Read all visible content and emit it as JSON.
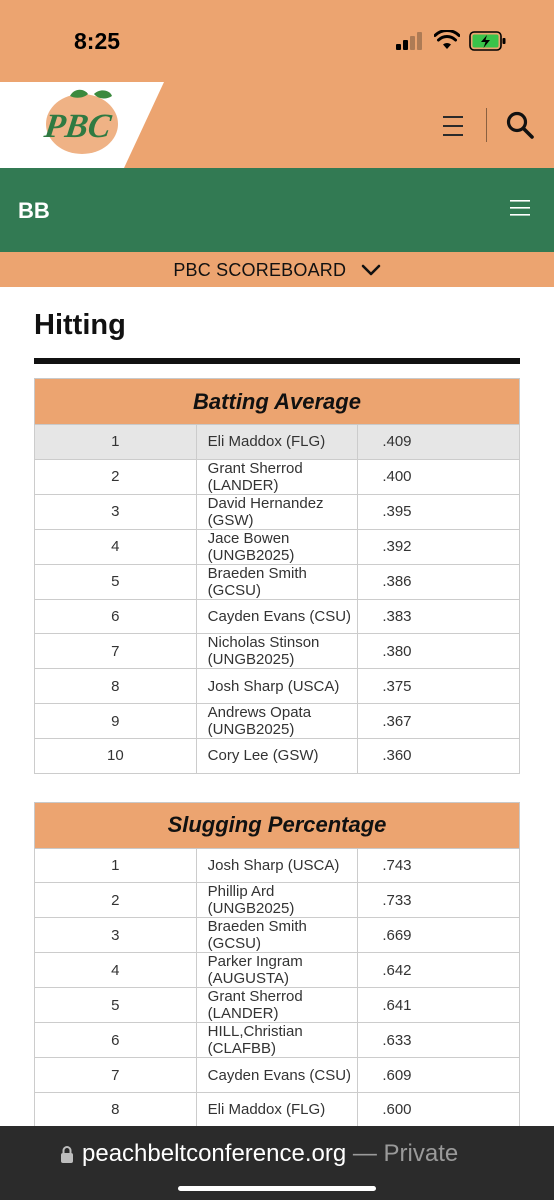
{
  "status": {
    "time": "8:25"
  },
  "header": {
    "logo_text": "PBC"
  },
  "sport_bar": {
    "label": "BB"
  },
  "scoreboard": {
    "label": "PBC SCOREBOARD"
  },
  "page": {
    "title": "Hitting"
  },
  "batting_average": {
    "heading": "Batting Average",
    "rows": [
      {
        "rank": "1",
        "player": "Eli Maddox (FLG)",
        "value": ".409"
      },
      {
        "rank": "2",
        "player": "Grant Sherrod (LANDER)",
        "value": ".400"
      },
      {
        "rank": "3",
        "player": "David Hernandez (GSW)",
        "value": ".395"
      },
      {
        "rank": "4",
        "player": "Jace Bowen (UNGB2025)",
        "value": ".392"
      },
      {
        "rank": "5",
        "player": "Braeden Smith (GCSU)",
        "value": ".386"
      },
      {
        "rank": "6",
        "player": "Cayden Evans (CSU)",
        "value": ".383"
      },
      {
        "rank": "7",
        "player": "Nicholas Stinson (UNGB2025)",
        "value": ".380"
      },
      {
        "rank": "8",
        "player": "Josh Sharp (USCA)",
        "value": ".375"
      },
      {
        "rank": "9",
        "player": "Andrews Opata (UNGB2025)",
        "value": ".367"
      },
      {
        "rank": "10",
        "player": "Cory Lee (GSW)",
        "value": ".360"
      }
    ]
  },
  "slugging_percentage": {
    "heading": "Slugging Percentage",
    "rows": [
      {
        "rank": "1",
        "player": "Josh Sharp (USCA)",
        "value": ".743"
      },
      {
        "rank": "2",
        "player": "Phillip Ard (UNGB2025)",
        "value": ".733"
      },
      {
        "rank": "3",
        "player": "Braeden Smith (GCSU)",
        "value": ".669"
      },
      {
        "rank": "4",
        "player": "Parker Ingram (AUGUSTA)",
        "value": ".642"
      },
      {
        "rank": "5",
        "player": "Grant Sherrod (LANDER)",
        "value": ".641"
      },
      {
        "rank": "6",
        "player": "HILL,Christian (CLAFBB)",
        "value": ".633"
      },
      {
        "rank": "7",
        "player": "Cayden Evans (CSU)",
        "value": ".609"
      },
      {
        "rank": "8",
        "player": "Eli Maddox (FLG)",
        "value": ".600"
      }
    ]
  },
  "browser": {
    "url": "peachbeltconference.org",
    "private_label": "— Private"
  },
  "colors": {
    "peach": "#eca470",
    "green": "#327a53",
    "dark": "#2b2b2b"
  }
}
